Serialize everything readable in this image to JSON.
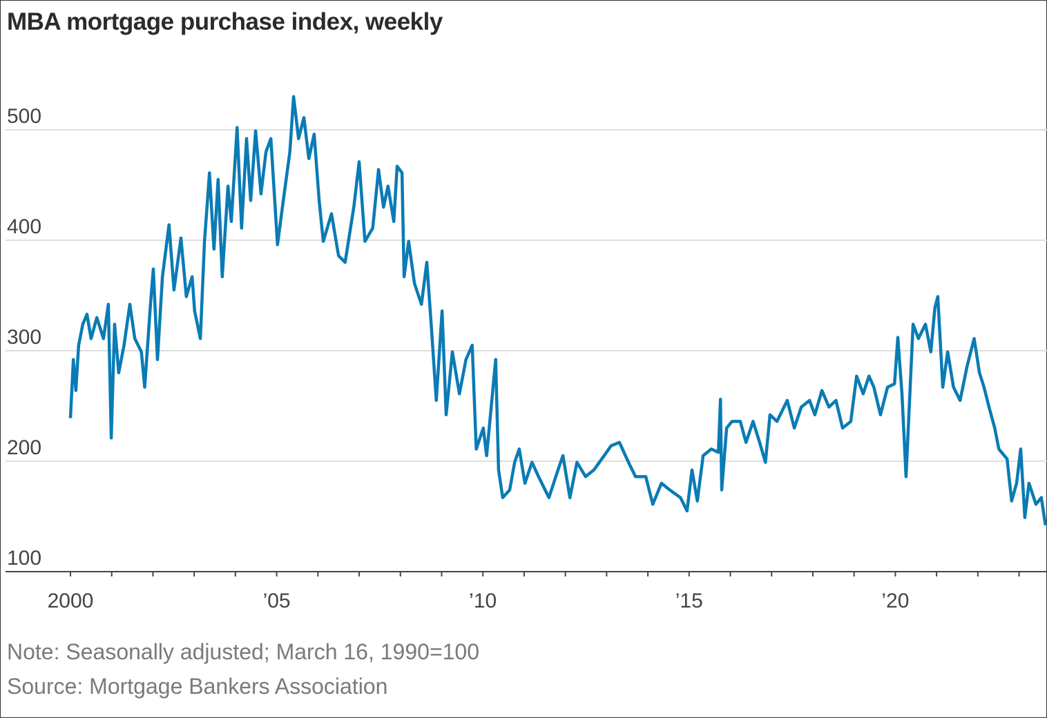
{
  "chart_data": {
    "type": "line",
    "title": "MBA mortgage purchase index, weekly",
    "xlabel": "",
    "ylabel": "",
    "xlim": [
      2000,
      2023.67
    ],
    "ylim": [
      100,
      540
    ],
    "yticks": [
      100,
      200,
      300,
      400,
      500
    ],
    "ytick_labels": [
      "100",
      "200",
      "300",
      "400",
      "500"
    ],
    "xticks": [
      2000,
      2005,
      2010,
      2015,
      2020
    ],
    "xtick_labels": [
      "2000",
      "’05",
      "’10",
      "’15",
      "’20"
    ],
    "minor_xticks_every_year": true,
    "grid": "horizontal",
    "line_color": "#0a7bb5",
    "series": [
      {
        "x": [
          2000.0,
          2000.07,
          2000.13,
          2000.2,
          2000.3,
          2000.4,
          2000.5,
          2000.64,
          2000.8,
          2000.92,
          2000.99,
          2001.07,
          2001.17,
          2001.3,
          2001.44,
          2001.56,
          2001.72,
          2001.8,
          2001.94,
          2002.01,
          2002.11,
          2002.23,
          2002.39,
          2002.51,
          2002.68,
          2002.81,
          2002.95,
          2003.01,
          2003.15,
          2003.25,
          2003.37,
          2003.48,
          2003.58,
          2003.68,
          2003.82,
          2003.9,
          2004.04,
          2004.15,
          2004.27,
          2004.37,
          2004.49,
          2004.62,
          2004.74,
          2004.86,
          2005.02,
          2005.16,
          2005.32,
          2005.41,
          2005.53,
          2005.66,
          2005.78,
          2005.91,
          2006.03,
          2006.13,
          2006.33,
          2006.5,
          2006.66,
          2006.87,
          2007.0,
          2007.14,
          2007.33,
          2007.47,
          2007.59,
          2007.7,
          2007.84,
          2007.92,
          2008.04,
          2008.09,
          2008.2,
          2008.34,
          2008.51,
          2008.64,
          2008.76,
          2008.87,
          2009.01,
          2009.11,
          2009.26,
          2009.43,
          2009.59,
          2009.74,
          2009.84,
          2010.01,
          2010.09,
          2010.31,
          2010.38,
          2010.48,
          2010.65,
          2010.77,
          2010.88,
          2011.02,
          2011.19,
          2011.35,
          2011.6,
          2011.82,
          2011.94,
          2012.11,
          2012.28,
          2012.49,
          2012.69,
          2012.94,
          2013.11,
          2013.31,
          2013.53,
          2013.7,
          2013.95,
          2014.12,
          2014.33,
          2014.53,
          2014.79,
          2014.95,
          2015.07,
          2015.2,
          2015.34,
          2015.54,
          2015.71,
          2015.76,
          2015.79,
          2015.91,
          2016.04,
          2016.24,
          2016.38,
          2016.55,
          2016.71,
          2016.85,
          2016.96,
          2017.13,
          2017.38,
          2017.55,
          2017.72,
          2017.92,
          2018.05,
          2018.22,
          2018.39,
          2018.56,
          2018.72,
          2018.92,
          2019.06,
          2019.22,
          2019.36,
          2019.48,
          2019.64,
          2019.81,
          2019.98,
          2020.06,
          2020.16,
          2020.26,
          2020.36,
          2020.43,
          2020.56,
          2020.73,
          2020.86,
          2020.96,
          2021.03,
          2021.15,
          2021.27,
          2021.41,
          2021.57,
          2021.74,
          2021.91,
          2022.04,
          2022.15,
          2022.27,
          2022.41,
          2022.51,
          2022.71,
          2022.82,
          2022.94,
          2023.04,
          2023.14,
          2023.24,
          2023.41,
          2023.54,
          2023.64
        ],
        "values": [
          239,
          292,
          264,
          305,
          324,
          333,
          311,
          330,
          311,
          342,
          221,
          324,
          280,
          305,
          342,
          311,
          299,
          267,
          342,
          374,
          292,
          367,
          414,
          355,
          402,
          349,
          367,
          336,
          311,
          399,
          461,
          392,
          455,
          367,
          449,
          417,
          502,
          411,
          492,
          436,
          499,
          442,
          480,
          492,
          396,
          436,
          480,
          530,
          492,
          511,
          474,
          496,
          436,
          399,
          424,
          386,
          380,
          430,
          471,
          399,
          411,
          464,
          430,
          449,
          417,
          467,
          461,
          367,
          399,
          361,
          342,
          380,
          317,
          255,
          336,
          242,
          299,
          261,
          292,
          305,
          211,
          230,
          205,
          292,
          192,
          167,
          174,
          199,
          211,
          180,
          199,
          186,
          167,
          192,
          205,
          167,
          199,
          186,
          192,
          205,
          214,
          217,
          199,
          186,
          186,
          161,
          180,
          174,
          167,
          155,
          192,
          164,
          205,
          211,
          208,
          256,
          174,
          230,
          236,
          236,
          217,
          236,
          217,
          199,
          242,
          236,
          255,
          230,
          249,
          255,
          242,
          264,
          249,
          255,
          230,
          236,
          277,
          261,
          277,
          267,
          242,
          267,
          270,
          312,
          261,
          186,
          267,
          324,
          311,
          324,
          299,
          339,
          349,
          267,
          299,
          267,
          255,
          286,
          311,
          280,
          267,
          249,
          230,
          211,
          202,
          164,
          180,
          211,
          149,
          180,
          161,
          167,
          142
        ]
      }
    ]
  },
  "note": "Note: Seasonally adjusted; March 16, 1990=100",
  "source": "Source: Mortgage Bankers Association"
}
